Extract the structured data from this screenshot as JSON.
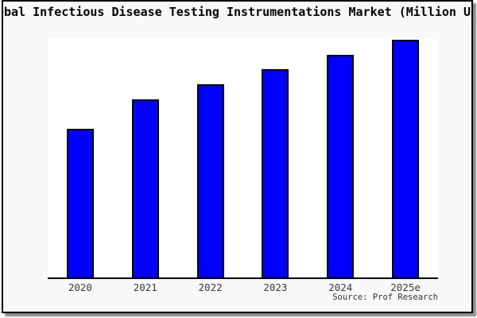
{
  "title": "Global Infectious Disease Testing Instrumentations Market (Million USD)",
  "colors": {
    "bar_fill": "#0000fc",
    "bar_border": "#000000",
    "chart_background": "#f8f8f6",
    "plot_background": "#ffffff",
    "frame_border": "#000000",
    "shadow": "#8a8a8a",
    "tick_label": "#3a3a3a"
  },
  "chart_data": {
    "type": "bar",
    "title": "Global Infectious Disease Testing Instrumentations Market (Million USD)",
    "categories": [
      "2020",
      "2021",
      "2022",
      "2023",
      "2024",
      "2025e"
    ],
    "values": [
      62.6,
      74.9,
      81.4,
      87.7,
      93.8,
      100
    ],
    "value_basis": "relative index estimated from bar heights, 2025e = 100 (no y-axis tick labels shown)",
    "xlabel": "",
    "ylabel": "",
    "ylim": [
      0,
      100.5
    ],
    "grid": false,
    "legend": "none",
    "bar_color": "#0000fc",
    "source": "Source: Prof Research"
  }
}
